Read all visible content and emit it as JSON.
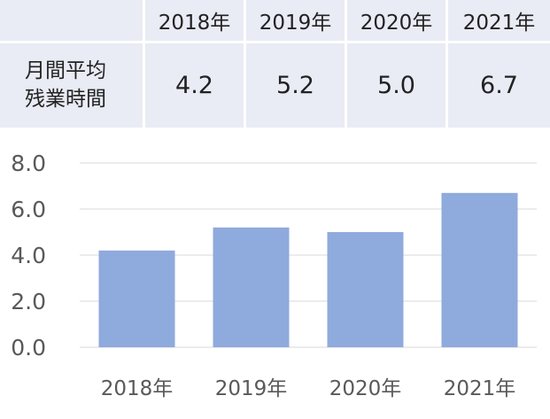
{
  "table": {
    "row_label": "月間平均\n残業時間",
    "columns": [
      "2018年",
      "2019年",
      "2020年",
      "2021年"
    ],
    "values": [
      "4.2",
      "5.2",
      "5.0",
      "6.7"
    ]
  },
  "chart_data": {
    "type": "bar",
    "categories": [
      "2018年",
      "2019年",
      "2020年",
      "2021年"
    ],
    "values": [
      4.2,
      5.2,
      5.0,
      6.7
    ],
    "ylim": [
      0,
      8
    ],
    "yticks": [
      "0.0",
      "2.0",
      "4.0",
      "6.0",
      "8.0"
    ],
    "grid": true,
    "bar_color": "#8faadc",
    "grid_color": "#d9d9d9"
  },
  "colors": {
    "table_bg": "#e9ebf5"
  }
}
